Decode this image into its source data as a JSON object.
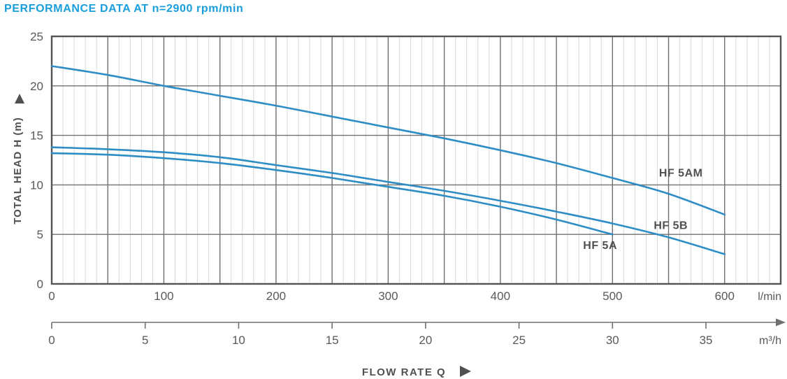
{
  "title": "PERFORMANCE DATA AT n=2900 rpm/min",
  "colors": {
    "title_blue": "#1a9edb",
    "curve_blue": "#2f8dc6",
    "grid_major": "#707070",
    "grid_minor": "#d9d9d9",
    "border": "#545454",
    "text_gray": "#58595b"
  },
  "chart_data": {
    "type": "line",
    "title": "PERFORMANCE DATA AT n=2900 rpm/min",
    "xlabel": "FLOW RATE Q",
    "ylabel": "TOTAL HEAD H (m)",
    "x_unit_primary": "l/min",
    "x_unit_secondary": "m³/h",
    "xlim_lmin": [
      0,
      650
    ],
    "ylim": [
      0,
      25
    ],
    "x_ticks_lmin": [
      0,
      100,
      200,
      300,
      400,
      500,
      600
    ],
    "x_ticks_m3h": [
      0,
      5,
      10,
      15,
      20,
      25,
      30,
      35
    ],
    "y_ticks": [
      0,
      5,
      10,
      15,
      20,
      25
    ],
    "grid": {
      "minor_step_lmin": 10,
      "major_step_lmin": 50,
      "major_step_head_m": 5
    },
    "legend_position": "inline-labels",
    "series": [
      {
        "name": "HF 5AM",
        "q_lmin": [
          0,
          50,
          100,
          150,
          200,
          250,
          300,
          350,
          400,
          450,
          500,
          550,
          600
        ],
        "head_m": [
          22.0,
          21.1,
          20.0,
          19.0,
          18.0,
          16.9,
          15.8,
          14.7,
          13.5,
          12.2,
          10.7,
          9.1,
          7.0
        ],
        "label_at": {
          "q_lmin": 561,
          "head_m": 11.2
        }
      },
      {
        "name": "HF 5B",
        "q_lmin": [
          0,
          50,
          100,
          150,
          200,
          250,
          300,
          350,
          400,
          450,
          500,
          550,
          600
        ],
        "head_m": [
          13.8,
          13.6,
          13.3,
          12.8,
          12.0,
          11.2,
          10.3,
          9.4,
          8.4,
          7.3,
          6.1,
          4.7,
          3.0
        ],
        "label_at": {
          "q_lmin": 552,
          "head_m": 5.9
        }
      },
      {
        "name": "HF 5A",
        "q_lmin": [
          0,
          50,
          100,
          150,
          200,
          250,
          300,
          350,
          400,
          450,
          500
        ],
        "head_m": [
          13.2,
          13.05,
          12.7,
          12.2,
          11.5,
          10.7,
          9.8,
          8.9,
          7.8,
          6.5,
          5.0
        ],
        "label_at": {
          "q_lmin": 489,
          "head_m": 3.9
        }
      }
    ]
  }
}
